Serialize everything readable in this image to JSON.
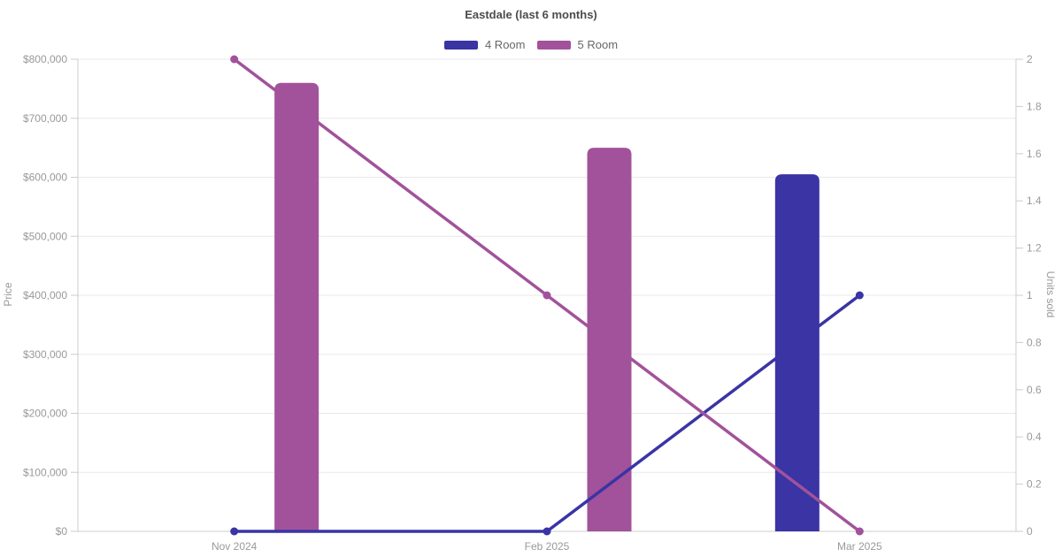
{
  "chart_data": {
    "type": "bar+line combo (dual axis)",
    "title": "Eastdale (last 6 months)",
    "categories": [
      "Nov 2024",
      "Feb 2025",
      "Mar 2025"
    ],
    "series": [
      {
        "name": "4 Room",
        "color": "#3a34a5",
        "bar_axis": "price",
        "line_axis": "units",
        "bar_values": [
          null,
          null,
          605000
        ],
        "line_values": [
          0,
          0,
          1
        ]
      },
      {
        "name": "5 Room",
        "color": "#a1529b",
        "bar_axis": "price",
        "line_axis": "units",
        "bar_values": [
          760000,
          650000,
          null
        ],
        "line_values": [
          2,
          1,
          0
        ]
      }
    ],
    "left_axis": {
      "label": "Price",
      "min": 0,
      "max": 800000,
      "tick_step": 100000,
      "tick_labels": [
        "$0",
        "$100,000",
        "$200,000",
        "$300,000",
        "$400,000",
        "$500,000",
        "$600,000",
        "$700,000",
        "$800,000"
      ]
    },
    "right_axis": {
      "label": "Units sold",
      "min": 0,
      "max": 2,
      "tick_step": 0.2,
      "tick_labels": [
        "0",
        "0.2",
        "0.4",
        "0.6",
        "0.8",
        "1",
        "1.2",
        "1.4",
        "1.6",
        "1.8",
        "2"
      ]
    },
    "legend_position": "top",
    "grid": "horizontal",
    "colors": {
      "background": "#ffffff",
      "grid_line": "#e8e8e8",
      "axis_line": "#cccccc",
      "axis_text": "#999999",
      "title_text": "#4c4c4c",
      "legend_text": "#666666"
    }
  }
}
